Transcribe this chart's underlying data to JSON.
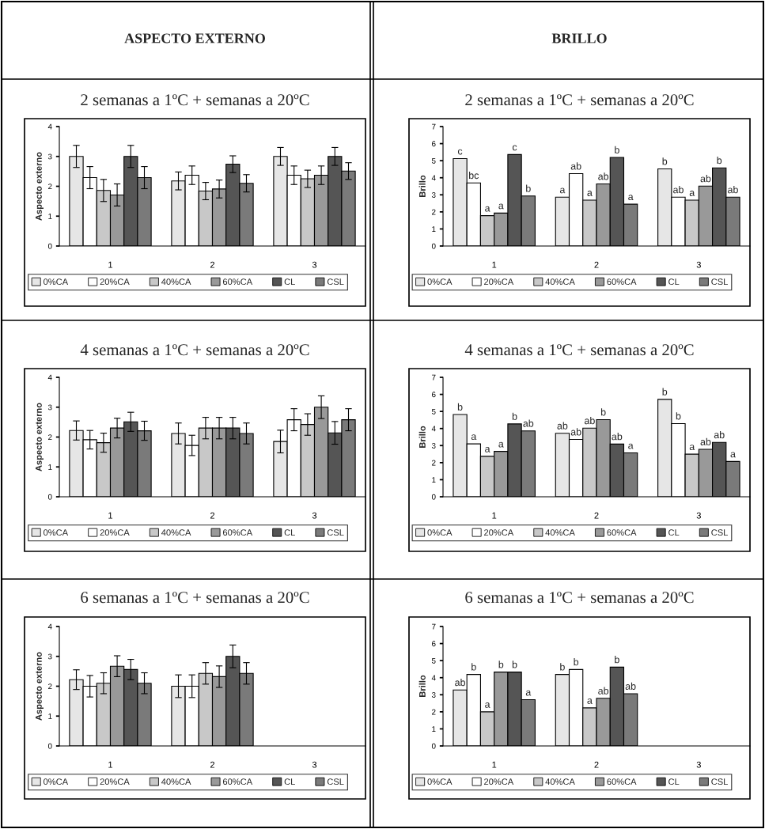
{
  "chart_data": [
    {
      "type": "bar",
      "title": "2 semanas a 1ºC + semanas a 20ºC",
      "ylabel": "Aspecto externo",
      "annotations": [
        "ASPECTO EXTERNO"
      ],
      "categories": [
        "1",
        "2",
        "3"
      ],
      "ylim": [
        0,
        4
      ],
      "yticks": [
        0,
        1,
        2,
        3,
        4
      ],
      "legend": "bottom",
      "series": [
        {
          "name": "0%CA",
          "color": "#e6e6e6",
          "values": [
            3.0,
            2.18,
            3.0
          ],
          "errors": [
            0.37,
            0.3,
            0.3
          ]
        },
        {
          "name": "20%CA",
          "color": "#ffffff",
          "values": [
            2.29,
            2.37,
            2.37
          ],
          "errors": [
            0.37,
            0.31,
            0.31
          ]
        },
        {
          "name": "40%CA",
          "color": "#c8c8c8",
          "values": [
            1.86,
            1.84,
            2.25
          ],
          "errors": [
            0.37,
            0.29,
            0.29
          ]
        },
        {
          "name": "60%CA",
          "color": "#999999",
          "values": [
            1.71,
            1.91,
            2.37
          ],
          "errors": [
            0.37,
            0.3,
            0.31
          ]
        },
        {
          "name": "CL",
          "color": "#555555",
          "values": [
            3.0,
            2.74,
            3.0
          ],
          "errors": [
            0.37,
            0.28,
            0.3
          ]
        },
        {
          "name": "CSL",
          "color": "#7a7a7a",
          "values": [
            2.29,
            2.1,
            2.51
          ],
          "errors": [
            0.37,
            0.29,
            0.28
          ]
        }
      ]
    },
    {
      "type": "bar",
      "title": "2 semanas a 1ºC + semanas a 20ºC",
      "ylabel": "Brillo",
      "annotations": [
        "BRILLO"
      ],
      "categories": [
        "1",
        "2",
        "3"
      ],
      "ylim": [
        0,
        7
      ],
      "yticks": [
        0,
        1,
        2,
        3,
        4,
        5,
        6,
        7
      ],
      "legend": "bottom",
      "series": [
        {
          "name": "0%CA",
          "color": "#e6e6e6",
          "values": [
            5.12,
            2.86,
            4.52
          ],
          "value_labels": [
            "c",
            "a",
            "b"
          ]
        },
        {
          "name": "20%CA",
          "color": "#ffffff",
          "values": [
            3.7,
            4.24,
            2.86
          ],
          "value_labels": [
            "bc",
            "ab",
            "ab"
          ]
        },
        {
          "name": "40%CA",
          "color": "#c8c8c8",
          "values": [
            1.78,
            2.69,
            2.69
          ],
          "value_labels": [
            "a",
            "a",
            "a"
          ]
        },
        {
          "name": "60%CA",
          "color": "#999999",
          "values": [
            1.93,
            3.64,
            3.51
          ],
          "value_labels": [
            "a",
            "ab",
            "ab"
          ]
        },
        {
          "name": "CL",
          "color": "#555555",
          "values": [
            5.36,
            5.19,
            4.58
          ],
          "value_labels": [
            "c",
            "b",
            "b"
          ]
        },
        {
          "name": "CSL",
          "color": "#7a7a7a",
          "values": [
            2.93,
            2.45,
            2.86
          ],
          "value_labels": [
            "b",
            "a",
            "ab"
          ]
        }
      ]
    },
    {
      "type": "bar",
      "title": "4 semanas a 1ºC + semanas a 20ºC",
      "ylabel": "Aspecto externo",
      "categories": [
        "1",
        "2",
        "3"
      ],
      "ylim": [
        0,
        4
      ],
      "yticks": [
        0,
        1,
        2,
        3,
        4
      ],
      "legend": "bottom",
      "series": [
        {
          "name": "0%CA",
          "color": "#e6e6e6",
          "values": [
            2.22,
            2.12,
            1.85
          ],
          "errors": [
            0.32,
            0.35,
            0.38
          ]
        },
        {
          "name": "20%CA",
          "color": "#ffffff",
          "values": [
            1.91,
            1.72,
            2.58
          ],
          "errors": [
            0.31,
            0.34,
            0.37
          ]
        },
        {
          "name": "40%CA",
          "color": "#c8c8c8",
          "values": [
            1.81,
            2.3,
            2.42
          ],
          "errors": [
            0.32,
            0.36,
            0.36
          ]
        },
        {
          "name": "60%CA",
          "color": "#999999",
          "values": [
            2.3,
            2.3,
            3.0
          ],
          "errors": [
            0.33,
            0.36,
            0.38
          ]
        },
        {
          "name": "CL",
          "color": "#555555",
          "values": [
            2.51,
            2.3,
            2.14
          ],
          "errors": [
            0.32,
            0.36,
            0.38
          ]
        },
        {
          "name": "CSL",
          "color": "#7a7a7a",
          "values": [
            2.21,
            2.12,
            2.58
          ],
          "errors": [
            0.32,
            0.35,
            0.37
          ]
        }
      ]
    },
    {
      "type": "bar",
      "title": "4 semanas a 1ºC + semanas a 20ºC",
      "ylabel": "Brillo",
      "categories": [
        "1",
        "2",
        "3"
      ],
      "ylim": [
        0,
        7
      ],
      "yticks": [
        0,
        1,
        2,
        3,
        4,
        5,
        6,
        7
      ],
      "legend": "bottom",
      "series": [
        {
          "name": "0%CA",
          "color": "#e6e6e6",
          "values": [
            4.82,
            3.72,
            5.71
          ],
          "value_labels": [
            "b",
            "ab",
            "b"
          ]
        },
        {
          "name": "20%CA",
          "color": "#ffffff",
          "values": [
            3.1,
            3.36,
            4.29
          ],
          "value_labels": [
            "a",
            "ab",
            "b"
          ]
        },
        {
          "name": "40%CA",
          "color": "#c8c8c8",
          "values": [
            2.37,
            4.02,
            2.5
          ],
          "value_labels": [
            "a",
            "ab",
            "a"
          ]
        },
        {
          "name": "60%CA",
          "color": "#999999",
          "values": [
            2.66,
            4.52,
            2.78
          ],
          "value_labels": [
            "a",
            "b",
            "ab"
          ]
        },
        {
          "name": "CL",
          "color": "#555555",
          "values": [
            4.27,
            3.09,
            3.19
          ],
          "value_labels": [
            "b",
            "ab",
            "ab"
          ]
        },
        {
          "name": "CSL",
          "color": "#7a7a7a",
          "values": [
            3.86,
            2.57,
            2.07
          ],
          "value_labels": [
            "ab",
            "a",
            "a"
          ]
        }
      ]
    },
    {
      "type": "bar",
      "title": "6 semanas a 1ºC + semanas a 20ºC",
      "ylabel": "Aspecto externo",
      "categories": [
        "1",
        "2",
        "3"
      ],
      "ylim": [
        0,
        4
      ],
      "yticks": [
        0,
        1,
        2,
        3,
        4
      ],
      "legend": "bottom",
      "series": [
        {
          "name": "0%CA",
          "color": "#e6e6e6",
          "values": [
            2.22,
            2.0,
            null
          ],
          "errors": [
            0.33,
            0.38,
            null
          ]
        },
        {
          "name": "20%CA",
          "color": "#ffffff",
          "values": [
            2.0,
            2.0,
            null
          ],
          "errors": [
            0.36,
            0.38,
            null
          ]
        },
        {
          "name": "40%CA",
          "color": "#c8c8c8",
          "values": [
            2.1,
            2.43,
            null
          ],
          "errors": [
            0.35,
            0.36,
            null
          ]
        },
        {
          "name": "60%CA",
          "color": "#999999",
          "values": [
            2.67,
            2.32,
            null
          ],
          "errors": [
            0.35,
            0.36,
            null
          ]
        },
        {
          "name": "CL",
          "color": "#555555",
          "values": [
            2.56,
            3.0,
            null
          ],
          "errors": [
            0.34,
            0.38,
            null
          ]
        },
        {
          "name": "CSL",
          "color": "#7a7a7a",
          "values": [
            2.1,
            2.43,
            null
          ],
          "errors": [
            0.35,
            0.36,
            null
          ]
        }
      ]
    },
    {
      "type": "bar",
      "title": "6 semanas a 1ºC + semanas a 20ºC",
      "ylabel": "Brillo",
      "categories": [
        "1",
        "2",
        "3"
      ],
      "ylim": [
        0,
        7
      ],
      "yticks": [
        0,
        1,
        2,
        3,
        4,
        5,
        6,
        7
      ],
      "legend": "bottom",
      "series": [
        {
          "name": "0%CA",
          "color": "#e6e6e6",
          "values": [
            3.28,
            4.19,
            null
          ],
          "value_labels": [
            "ab",
            "b",
            null
          ]
        },
        {
          "name": "20%CA",
          "color": "#ffffff",
          "values": [
            4.19,
            4.48,
            null
          ],
          "value_labels": [
            "b",
            "b",
            null
          ]
        },
        {
          "name": "40%CA",
          "color": "#c8c8c8",
          "values": [
            2.0,
            2.23,
            null
          ],
          "value_labels": [
            "a",
            "a",
            null
          ]
        },
        {
          "name": "60%CA",
          "color": "#999999",
          "values": [
            4.33,
            2.79,
            null
          ],
          "value_labels": [
            "b",
            "ab",
            null
          ]
        },
        {
          "name": "CL",
          "color": "#555555",
          "values": [
            4.33,
            4.62,
            null
          ],
          "value_labels": [
            "b",
            "b",
            null
          ]
        },
        {
          "name": "CSL",
          "color": "#7a7a7a",
          "values": [
            2.71,
            3.06,
            null
          ],
          "value_labels": [
            "a",
            "ab",
            null
          ]
        }
      ]
    }
  ]
}
